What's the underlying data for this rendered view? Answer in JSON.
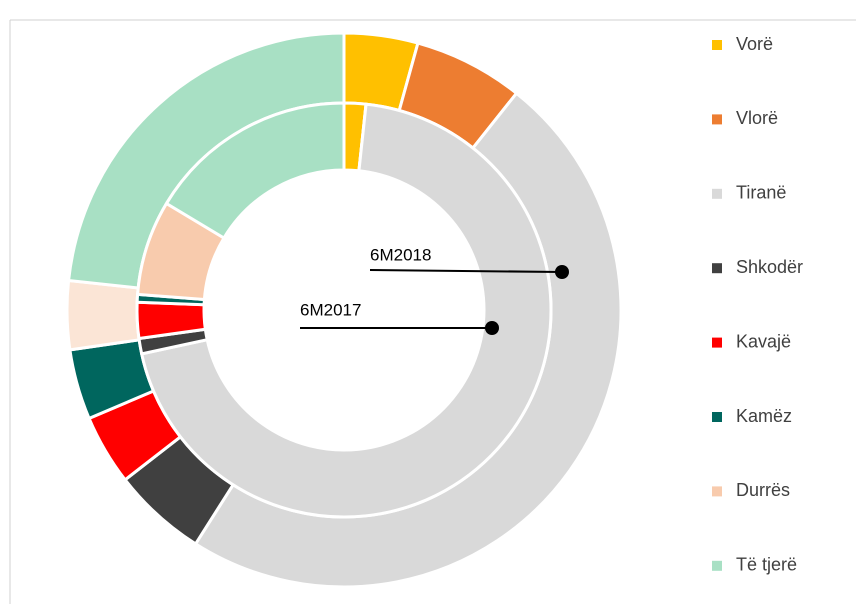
{
  "chart_data": {
    "type": "donut",
    "categories": [
      "Vorë",
      "Vlorë",
      "Tiranë",
      "Shkodër",
      "Kavajë",
      "Kamëz",
      "Durrës",
      "Të tjerë"
    ],
    "colors": [
      "#ffc000",
      "#ed7d31",
      "#d9d9d9",
      "#404040",
      "#ff0000",
      "#00665e",
      "#f8cbad",
      "#a8e0c4"
    ],
    "series": [
      {
        "name": "6M2018",
        "values": [
          4.3,
          6.4,
          48.3,
          5.5,
          4.1,
          4.1,
          4.0,
          23.3
        ],
        "colors": [
          "#ffc000",
          "#ed7d31",
          "#d9d9d9",
          "#404040",
          "#ff0000",
          "#00665e",
          "#fbe5d6",
          "#a8e0c4"
        ]
      },
      {
        "name": "6M2017",
        "values": [
          1.7,
          0,
          69.9,
          1.2,
          2.8,
          0.6,
          7.4,
          16.4
        ],
        "colors": [
          "#ffc000",
          "#ed7d31",
          "#d9d9d9",
          "#404040",
          "#ff0000",
          "#00665e",
          "#f8cbad",
          "#a8e0c4"
        ]
      }
    ]
  }
}
